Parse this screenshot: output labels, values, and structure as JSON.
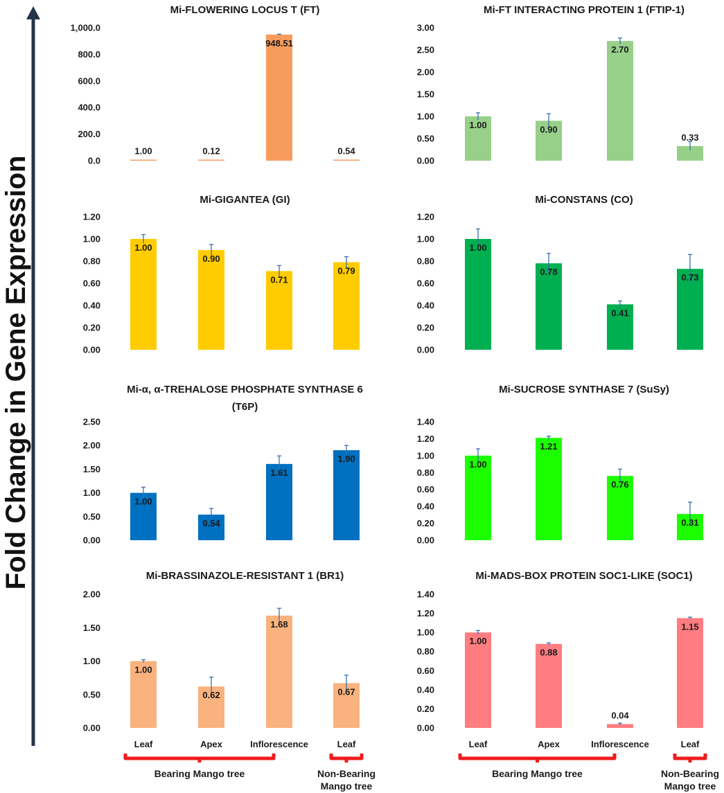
{
  "figure": {
    "y_axis_title": "Fold Change in Gene Expression",
    "colors": {
      "axis_arrow": "#243447",
      "bracket": "#ee1c1c",
      "error_bar": "#3a6fb0"
    },
    "groups": [
      {
        "left_categories": [
          "Leaf",
          "Apex",
          "Inflorescence"
        ],
        "left_label": "Bearing Mango tree",
        "right_category": "Leaf",
        "right_label_lines": [
          "Non-Bearing",
          "Mango tree"
        ]
      },
      {
        "left_categories": [
          "Leaf",
          "Apex",
          "Inflorescence"
        ],
        "left_label": "Bearing Mango tree",
        "right_category": "Leaf",
        "right_label_lines": [
          "Non-Bearing",
          "Mango tree"
        ]
      }
    ]
  },
  "chart_data": [
    {
      "type": "bar",
      "title_lines": [
        "Mi-FLOWERING LOCUS T (FT)"
      ],
      "categories": [
        "Leaf",
        "Apex",
        "Inflorescence",
        "Leaf"
      ],
      "values": [
        1.0,
        0.12,
        948.51,
        0.54
      ],
      "value_labels": [
        "1.00",
        "0.12",
        "948.51",
        "0.54"
      ],
      "errors": [
        0,
        0,
        3,
        0
      ],
      "yticks": [
        "0.0",
        "200.0",
        "400.0",
        "600.0",
        "800.0",
        "1,000.0"
      ],
      "ylim": [
        0,
        1000
      ],
      "color": "#f89c5e"
    },
    {
      "type": "bar",
      "title_lines": [
        "Mi-FT INTERACTING PROTEIN 1 (FTIP-1)"
      ],
      "categories": [
        "Leaf",
        "Apex",
        "Inflorescence",
        "Leaf"
      ],
      "values": [
        1.0,
        0.9,
        2.7,
        0.33
      ],
      "value_labels": [
        "1.00",
        "0.90",
        "2.70",
        "0.33"
      ],
      "errors": [
        0.08,
        0.16,
        0.07,
        0.1
      ],
      "yticks": [
        "0.00",
        "0.50",
        "1.00",
        "1.50",
        "2.00",
        "2.50",
        "3.00"
      ],
      "ylim": [
        0,
        3
      ],
      "color": "#98d08a"
    },
    {
      "type": "bar",
      "title_lines": [
        "Mi-GIGANTEA (GI)"
      ],
      "categories": [
        "Leaf",
        "Apex",
        "Inflorescence",
        "Leaf"
      ],
      "values": [
        1.0,
        0.9,
        0.71,
        0.79
      ],
      "value_labels": [
        "1.00",
        "0.90",
        "0.71",
        "0.79"
      ],
      "errors": [
        0.04,
        0.05,
        0.05,
        0.05
      ],
      "yticks": [
        "0.00",
        "0.20",
        "0.40",
        "0.60",
        "0.80",
        "1.00",
        "1.20"
      ],
      "ylim": [
        0,
        1.2
      ],
      "color": "#ffcc00"
    },
    {
      "type": "bar",
      "title_lines": [
        "Mi-CONSTANS (CO)"
      ],
      "categories": [
        "Leaf",
        "Apex",
        "Inflorescence",
        "Leaf"
      ],
      "values": [
        1.0,
        0.78,
        0.41,
        0.73
      ],
      "value_labels": [
        "1.00",
        "0.78",
        "0.41",
        "0.73"
      ],
      "errors": [
        0.09,
        0.09,
        0.03,
        0.13
      ],
      "yticks": [
        "0.00",
        "0.20",
        "0.40",
        "0.60",
        "0.80",
        "1.00",
        "1.20"
      ],
      "ylim": [
        0,
        1.2
      ],
      "color": "#00b050"
    },
    {
      "type": "bar",
      "title_lines": [
        "Mi-α, α-TREHALOSE PHOSPHATE SYNTHASE 6",
        "(T6P)"
      ],
      "categories": [
        "Leaf",
        "Apex",
        "Inflorescence",
        "Leaf"
      ],
      "values": [
        1.0,
        0.54,
        1.61,
        1.9
      ],
      "value_labels": [
        "1.00",
        "0.54",
        "1.61",
        "1.90"
      ],
      "errors": [
        0.12,
        0.13,
        0.17,
        0.1
      ],
      "yticks": [
        "0.00",
        "0.50",
        "1.00",
        "1.50",
        "2.00",
        "2.50"
      ],
      "ylim": [
        0,
        2.5
      ],
      "color": "#0070c0"
    },
    {
      "type": "bar",
      "title_lines": [
        "Mi-SUCROSE SYNTHASE 7 (SuSy)"
      ],
      "categories": [
        "Leaf",
        "Apex",
        "Inflorescence",
        "Leaf"
      ],
      "values": [
        1.0,
        1.21,
        0.76,
        0.31
      ],
      "value_labels": [
        "1.00",
        "1.21",
        "0.76",
        "0.31"
      ],
      "errors": [
        0.08,
        0.02,
        0.08,
        0.14
      ],
      "yticks": [
        "0.00",
        "0.20",
        "0.40",
        "0.60",
        "0.80",
        "1.00",
        "1.20",
        "1.40"
      ],
      "ylim": [
        0,
        1.4
      ],
      "color": "#1dff00"
    },
    {
      "type": "bar",
      "title_lines": [
        "Mi-BRASSINAZOLE-RESISTANT 1 (BR1)"
      ],
      "categories": [
        "Leaf",
        "Apex",
        "Inflorescence",
        "Leaf"
      ],
      "values": [
        1.0,
        0.62,
        1.68,
        0.67
      ],
      "value_labels": [
        "1.00",
        "0.62",
        "1.68",
        "0.67"
      ],
      "errors": [
        0.02,
        0.14,
        0.11,
        0.12
      ],
      "yticks": [
        "0.00",
        "0.50",
        "1.00",
        "1.50",
        "2.00"
      ],
      "ylim": [
        0,
        2.0
      ],
      "color": "#fab27e"
    },
    {
      "type": "bar",
      "title_lines": [
        "Mi-MADS-BOX PROTEIN SOC1-LIKE (SOC1)"
      ],
      "categories": [
        "Leaf",
        "Apex",
        "Inflorescence",
        "Leaf"
      ],
      "values": [
        1.0,
        0.88,
        0.04,
        1.15
      ],
      "value_labels": [
        "1.00",
        "0.88",
        "0.04",
        "1.15"
      ],
      "errors": [
        0.02,
        0.01,
        0.01,
        0.01
      ],
      "yticks": [
        "0.00",
        "0.20",
        "0.40",
        "0.60",
        "0.80",
        "1.00",
        "1.20",
        "1.40"
      ],
      "ylim": [
        0,
        1.4
      ],
      "color": "#ff7c80"
    }
  ]
}
